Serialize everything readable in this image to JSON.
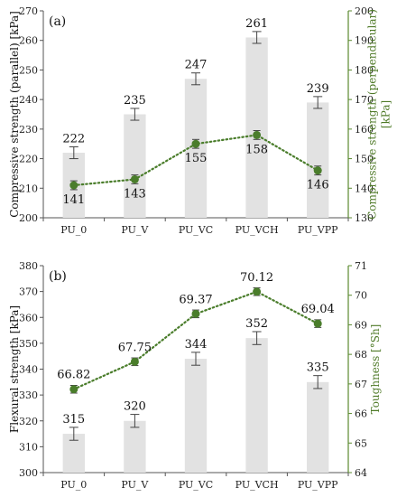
{
  "colors": {
    "bar": "#e2e2e2",
    "line": "#4a7d2b",
    "marker": "#4a7d2b",
    "right_axis": "#5b8a2f",
    "axis": "#555555",
    "error": "#444444"
  },
  "chart_data": [
    {
      "type": "bar",
      "panel_label": "(a)",
      "categories": [
        "PU_0",
        "PU_V",
        "PU_VC",
        "PU_VCH",
        "PU_VPP"
      ],
      "ylabel": "Compressive strength (parallel) [kPa]",
      "ylim": [
        200,
        270
      ],
      "yticks": [
        200,
        210,
        220,
        230,
        240,
        250,
        260,
        270
      ],
      "bars": {
        "values": [
          222,
          235,
          247,
          261,
          239
        ],
        "labels": [
          "222",
          "235",
          "247",
          "261",
          "239"
        ],
        "errors": [
          2,
          2,
          2,
          2,
          2
        ]
      },
      "y2label": "Compressive strength (perpendicular) [kPa]",
      "y2lim": [
        130,
        200
      ],
      "y2ticks": [
        130,
        140,
        150,
        160,
        170,
        180,
        190,
        200
      ],
      "line": {
        "type": "line",
        "style": "dotted",
        "values": [
          141,
          143,
          155,
          158,
          146
        ],
        "labels": [
          "141",
          "143",
          "155",
          "158",
          "146"
        ],
        "errors": [
          1.5,
          1.5,
          1.5,
          1.5,
          1.5
        ]
      }
    },
    {
      "type": "bar",
      "panel_label": "(b)",
      "categories": [
        "PU_0",
        "PU_V",
        "PU_VC",
        "PU_VCH",
        "PU_VPP"
      ],
      "ylabel": "Flexural strength [kPa]",
      "ylim": [
        300,
        380
      ],
      "yticks": [
        300,
        310,
        320,
        330,
        340,
        350,
        360,
        370,
        380
      ],
      "bars": {
        "values": [
          315,
          320,
          344,
          352,
          335
        ],
        "labels": [
          "315",
          "320",
          "344",
          "352",
          "335"
        ],
        "errors": [
          2.5,
          2.5,
          2.5,
          2.5,
          2.5
        ]
      },
      "y2label": "Toughness [°Sh]",
      "y2lim": [
        64,
        71
      ],
      "y2ticks": [
        64,
        65,
        66,
        67,
        68,
        69,
        70,
        71
      ],
      "line": {
        "type": "line",
        "style": "dotted",
        "values": [
          66.82,
          67.75,
          69.37,
          70.12,
          69.04
        ],
        "labels": [
          "66.82",
          "67.75",
          "69.37",
          "70.12",
          "69.04"
        ],
        "errors": [
          0.13,
          0.13,
          0.13,
          0.13,
          0.13
        ]
      }
    }
  ]
}
